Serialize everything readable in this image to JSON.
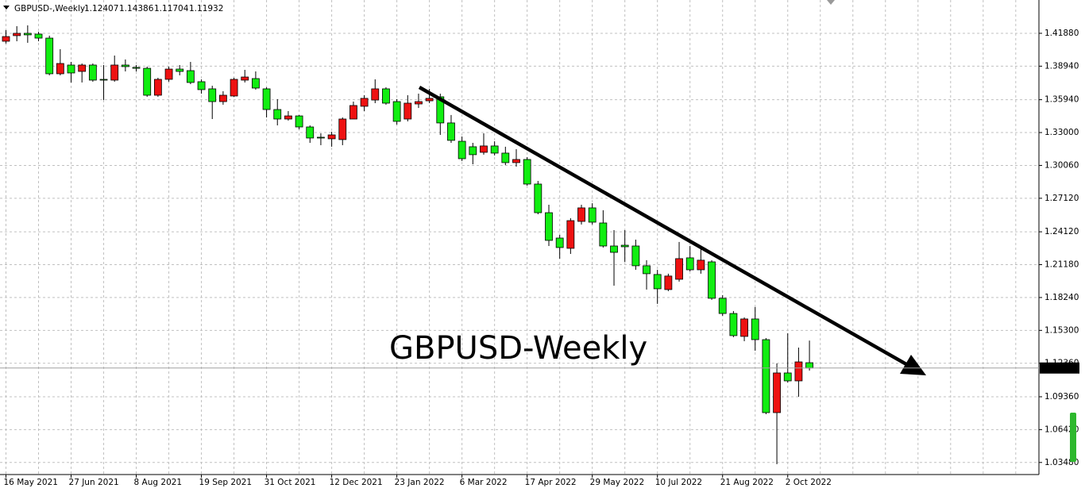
{
  "chart_data": {
    "type": "candlestick",
    "title": "GBPUSD-,Weekly",
    "annotation": "GBPUSD-Weekly",
    "categories": [
      "16 May 2021",
      null,
      null,
      null,
      null,
      null,
      "27 Jun 2021",
      null,
      null,
      null,
      null,
      null,
      "8 Aug 2021",
      null,
      null,
      null,
      null,
      null,
      "19 Sep 2021",
      null,
      null,
      null,
      null,
      null,
      "31 Oct 2021",
      null,
      null,
      null,
      null,
      null,
      "12 Dec 2021",
      null,
      null,
      null,
      null,
      null,
      "23 Jan 2022",
      null,
      null,
      null,
      null,
      null,
      "6 Mar 2022",
      null,
      null,
      null,
      null,
      null,
      "17 Apr 2022",
      null,
      null,
      null,
      null,
      null,
      "29 May 2022",
      null,
      null,
      null,
      null,
      null,
      "10 Jul 2022",
      null,
      null,
      null,
      null,
      null,
      "21 Aug 2022",
      null,
      null,
      null,
      null,
      null,
      "2 Oct 2022",
      null,
      null
    ],
    "open": [
      1.4117,
      1.4167,
      1.4188,
      1.4181,
      1.4145,
      1.3826,
      1.3904,
      1.3847,
      1.3904,
      1.3776,
      1.3769,
      1.3904,
      1.3883,
      1.3875,
      1.3634,
      1.3776,
      1.3868,
      1.3854,
      1.3755,
      1.3691,
      1.3577,
      1.3627,
      1.3769,
      1.3783,
      1.3691,
      1.3506,
      1.3421,
      1.3449,
      1.335,
      1.3258,
      1.3244,
      1.3237,
      1.3421,
      1.3535,
      1.3591,
      1.3691,
      1.3577,
      1.3421,
      1.3556,
      1.3584,
      1.362,
      1.3386,
      1.3222,
      1.3173,
      1.3123,
      1.318,
      1.3116,
      1.3031,
      1.3059,
      1.2839,
      1.2583,
      1.2356,
      1.2264,
      1.2505,
      1.2626,
      1.2491,
      1.2285,
      1.2292,
      1.2285,
      1.2108,
      1.203,
      1.1895,
      1.1987,
      1.2179,
      1.2072,
      1.2143,
      1.1817,
      1.1681,
      1.1476,
      1.1632,
      1.1447,
      1.0794,
      1.1149,
      1.1078,
      1.12407
    ],
    "high": [
      1.4216,
      1.4252,
      1.4259,
      1.4202,
      1.4167,
      1.4046,
      1.3932,
      1.3918,
      1.3918,
      1.3904,
      1.3989,
      1.3954,
      1.3904,
      1.389,
      1.379,
      1.389,
      1.3904,
      1.3932,
      1.3776,
      1.3719,
      1.367,
      1.379,
      1.3861,
      1.3847,
      1.3705,
      1.3599,
      1.3492,
      1.3457,
      1.3364,
      1.3293,
      1.3307,
      1.3435,
      1.3577,
      1.3634,
      1.3776,
      1.3705,
      1.3599,
      1.3634,
      1.3648,
      1.3691,
      1.3648,
      1.3457,
      1.3265,
      1.3208,
      1.3293,
      1.3222,
      1.3173,
      1.3151,
      1.308,
      1.2867,
      1.2654,
      1.2384,
      1.2534,
      1.2654,
      1.2668,
      1.2605,
      1.2427,
      1.2427,
      1.2342,
      1.2158,
      1.2072,
      1.2037,
      1.2321,
      1.2285,
      1.2271,
      1.2158,
      1.1845,
      1.1703,
      1.1646,
      1.1739,
      1.1461,
      1.1234,
      1.1504,
      1.1376,
      1.14386
    ],
    "low": [
      1.4096,
      1.4117,
      1.4103,
      1.4117,
      1.3812,
      1.3812,
      1.3748,
      1.3748,
      1.3755,
      1.3591,
      1.3755,
      1.3847,
      1.3847,
      1.362,
      1.362,
      1.3755,
      1.3812,
      1.3733,
      1.3648,
      1.3421,
      1.3549,
      1.362,
      1.3748,
      1.3684,
      1.3435,
      1.3364,
      1.3407,
      1.3329,
      1.3208,
      1.3187,
      1.3173,
      1.3187,
      1.3421,
      1.3492,
      1.3563,
      1.3549,
      1.3371,
      1.34,
      1.352,
      1.3563,
      1.3279,
      1.3208,
      1.3045,
      1.3016,
      1.3102,
      1.3095,
      1.3009,
      1.2995,
      1.2825,
      1.2569,
      1.2285,
      1.2172,
      1.2214,
      1.2477,
      1.2477,
      1.2271,
      1.193,
      1.2143,
      1.2072,
      1.1895,
      1.1767,
      1.1881,
      1.1966,
      1.2058,
      1.2037,
      1.1803,
      1.166,
      1.1469,
      1.1433,
      1.1348,
      1.078,
      1.0333,
      1.1064,
      1.0936,
      1.11704
    ],
    "close": [
      1.4159,
      1.4188,
      1.4174,
      1.4145,
      1.3826,
      1.3918,
      1.3833,
      1.3904,
      1.3769,
      1.3769,
      1.3904,
      1.389,
      1.3875,
      1.3634,
      1.3776,
      1.3868,
      1.3847,
      1.3748,
      1.3684,
      1.3577,
      1.3634,
      1.3776,
      1.3797,
      1.3698,
      1.3506,
      1.3421,
      1.3449,
      1.335,
      1.3251,
      1.3251,
      1.3279,
      1.3421,
      1.3542,
      1.3606,
      1.3691,
      1.3563,
      1.34,
      1.3563,
      1.3577,
      1.3606,
      1.3386,
      1.323,
      1.3066,
      1.3102,
      1.318,
      1.3116,
      1.3031,
      1.3059,
      1.2839,
      1.2583,
      1.2335,
      1.2271,
      1.2512,
      1.2626,
      1.2498,
      1.2285,
      1.2228,
      1.2278,
      1.2108,
      1.2037,
      1.1902,
      1.2016,
      1.2172,
      1.2072,
      1.2158,
      1.1817,
      1.1681,
      1.1483,
      1.1632,
      1.1447,
      1.0794,
      1.1149,
      1.1078,
      1.1248,
      1.11932
    ],
    "up_color": "#ee1111",
    "down_color": "#11ee11",
    "annotation_color": "#ff2222",
    "ylim": [
      1.024,
      1.4486
    ],
    "yticks": [
      {
        "value": 1.4188,
        "label": "1.41880"
      },
      {
        "value": 1.3894,
        "label": "1.38940"
      },
      {
        "value": 1.3594,
        "label": "1.35940"
      },
      {
        "value": 1.33,
        "label": "1.33000"
      },
      {
        "value": 1.3006,
        "label": "1.30060"
      },
      {
        "value": 1.2712,
        "label": "1.27120"
      },
      {
        "value": 1.2412,
        "label": "1.24120"
      },
      {
        "value": 1.2118,
        "label": "1.21180"
      },
      {
        "value": 1.1824,
        "label": "1.18240"
      },
      {
        "value": 1.153,
        "label": "1.15300"
      },
      {
        "value": 1.1236,
        "label": "1.12360"
      },
      {
        "value": 1.0936,
        "label": "1.09360"
      },
      {
        "value": 1.0642,
        "label": "1.06420"
      },
      {
        "value": 1.0348,
        "label": "1.03480"
      }
    ],
    "grid": true
  }
}
